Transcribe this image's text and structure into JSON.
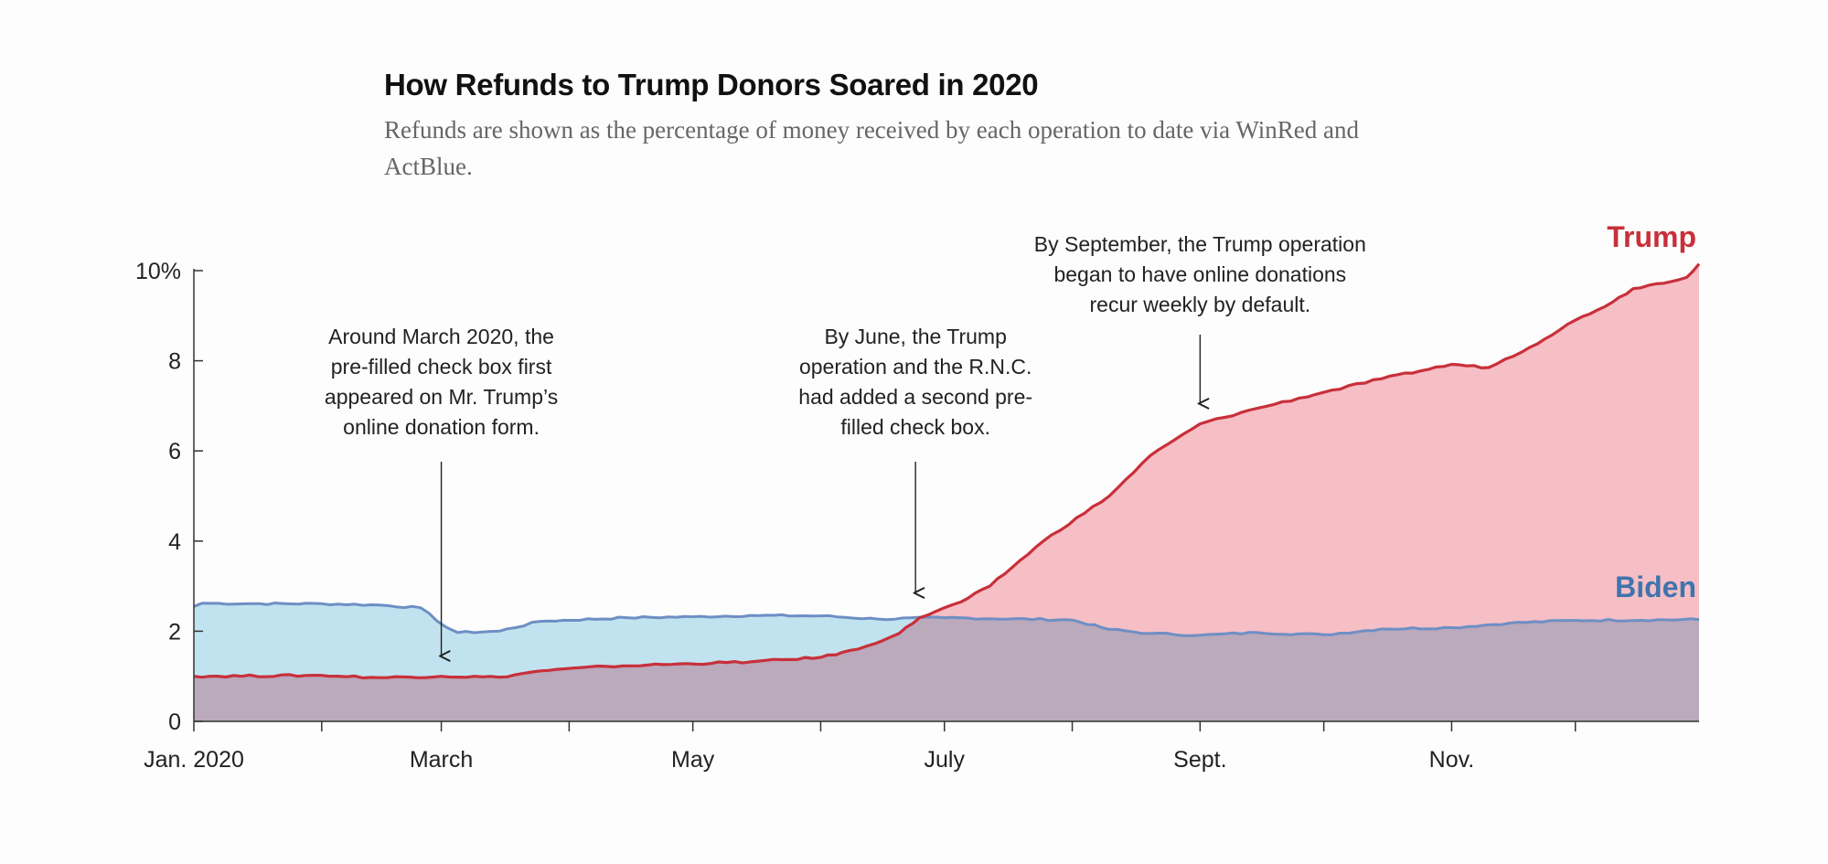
{
  "header": {
    "title": "How Refunds to Trump Donors Soared in 2020",
    "subtitle": "Refunds are shown as the percentage of money received by each operation to date via WinRed and ActBlue."
  },
  "colors": {
    "trump_line": "#c8303a",
    "trump_fill": "#f6bec5",
    "biden_line": "#6e8fc4",
    "biden_fill": "#c1e3ef",
    "overlap_fill": "#bba9bc",
    "trump_label": "#c8303a",
    "biden_label": "#3f74ad",
    "axis": "#333333"
  },
  "chart_data": {
    "type": "area",
    "x_unit": "date (2020)",
    "y_unit": "percent",
    "ylim": [
      0,
      10
    ],
    "xlim": [
      "2020-01-01",
      "2020-12-31"
    ],
    "y_ticks": [
      {
        "value": 0,
        "label": "0"
      },
      {
        "value": 2,
        "label": "2"
      },
      {
        "value": 4,
        "label": "4"
      },
      {
        "value": 6,
        "label": "6"
      },
      {
        "value": 8,
        "label": "8"
      },
      {
        "value": 10,
        "label": "10%"
      }
    ],
    "x_ticks": [
      {
        "date": "2020-01-01",
        "label": "Jan. 2020"
      },
      {
        "date": "2020-02-01",
        "label": ""
      },
      {
        "date": "2020-03-01",
        "label": "March"
      },
      {
        "date": "2020-04-01",
        "label": ""
      },
      {
        "date": "2020-05-01",
        "label": "May"
      },
      {
        "date": "2020-06-01",
        "label": ""
      },
      {
        "date": "2020-07-01",
        "label": "July"
      },
      {
        "date": "2020-08-01",
        "label": ""
      },
      {
        "date": "2020-09-01",
        "label": "Sept."
      },
      {
        "date": "2020-10-01",
        "label": ""
      },
      {
        "date": "2020-11-01",
        "label": "Nov."
      },
      {
        "date": "2020-12-01",
        "label": ""
      }
    ],
    "grid": false,
    "series": [
      {
        "name": "Biden",
        "key": "biden",
        "points": [
          [
            "2020-01-01",
            2.55
          ],
          [
            "2020-01-03",
            2.62
          ],
          [
            "2020-01-15",
            2.61
          ],
          [
            "2020-02-01",
            2.61
          ],
          [
            "2020-02-15",
            2.58
          ],
          [
            "2020-02-25",
            2.52
          ],
          [
            "2020-03-02",
            2.1
          ],
          [
            "2020-03-05",
            1.97
          ],
          [
            "2020-03-15",
            2.0
          ],
          [
            "2020-03-25",
            2.22
          ],
          [
            "2020-04-15",
            2.3
          ],
          [
            "2020-05-01",
            2.32
          ],
          [
            "2020-05-15",
            2.35
          ],
          [
            "2020-06-01",
            2.34
          ],
          [
            "2020-06-15",
            2.27
          ],
          [
            "2020-07-01",
            2.3
          ],
          [
            "2020-08-01",
            2.25
          ],
          [
            "2020-08-10",
            2.04
          ],
          [
            "2020-08-20",
            1.95
          ],
          [
            "2020-09-01",
            1.91
          ],
          [
            "2020-09-15",
            1.97
          ],
          [
            "2020-10-01",
            1.92
          ],
          [
            "2020-10-15",
            2.05
          ],
          [
            "2020-11-01",
            2.08
          ],
          [
            "2020-11-15",
            2.18
          ],
          [
            "2020-12-01",
            2.24
          ],
          [
            "2020-12-31",
            2.26
          ]
        ]
      },
      {
        "name": "Trump",
        "key": "trump",
        "points": [
          [
            "2020-01-01",
            1.0
          ],
          [
            "2020-02-01",
            1.02
          ],
          [
            "2020-02-15",
            0.97
          ],
          [
            "2020-03-01",
            1.0
          ],
          [
            "2020-03-15",
            0.98
          ],
          [
            "2020-03-25",
            1.12
          ],
          [
            "2020-04-10",
            1.22
          ],
          [
            "2020-04-20",
            1.25
          ],
          [
            "2020-05-15",
            1.32
          ],
          [
            "2020-06-01",
            1.42
          ],
          [
            "2020-06-10",
            1.6
          ],
          [
            "2020-06-20",
            1.95
          ],
          [
            "2020-06-25",
            2.3
          ],
          [
            "2020-07-05",
            2.65
          ],
          [
            "2020-07-12",
            3.0
          ],
          [
            "2020-07-25",
            4.0
          ],
          [
            "2020-08-10",
            5.0
          ],
          [
            "2020-08-20",
            5.9
          ],
          [
            "2020-09-01",
            6.6
          ],
          [
            "2020-09-15",
            6.95
          ],
          [
            "2020-10-01",
            7.3
          ],
          [
            "2020-10-15",
            7.6
          ],
          [
            "2020-11-01",
            7.92
          ],
          [
            "2020-11-10",
            7.85
          ],
          [
            "2020-11-20",
            8.3
          ],
          [
            "2020-12-01",
            8.9
          ],
          [
            "2020-12-10",
            9.3
          ],
          [
            "2020-12-15",
            9.6
          ],
          [
            "2020-12-28",
            9.85
          ],
          [
            "2020-12-31",
            10.15
          ]
        ]
      }
    ],
    "annotations": [
      {
        "lines": [
          "Around March 2020, the",
          "pre-filled check box first",
          "appeared on Mr. Trump’s",
          "online donation form."
        ],
        "date": "2020-03-01",
        "arrow_tip_value": 1.45
      },
      {
        "lines": [
          "By June, the Trump",
          "operation and the R.N.C.",
          "had added a second pre-",
          "filled check box."
        ],
        "date": "2020-06-24",
        "arrow_tip_value": 2.85
      },
      {
        "lines": [
          "By September, the Trump operation",
          "began to have online donations",
          "recur weekly by default."
        ],
        "date": "2020-09-01",
        "arrow_tip_value": 7.05
      }
    ]
  }
}
